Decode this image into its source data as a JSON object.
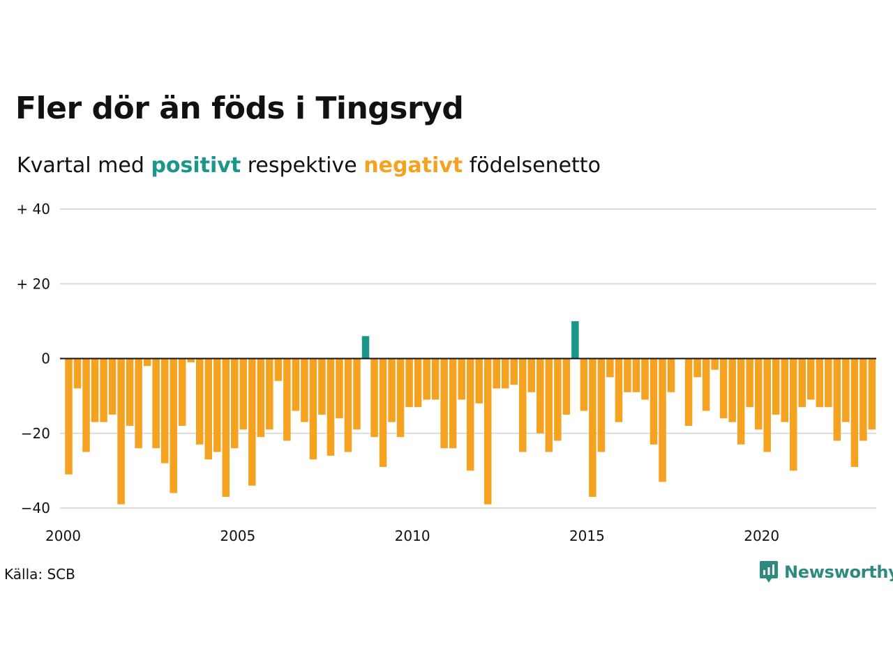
{
  "title": "Fler dör än föds i Tingsryd",
  "subtitle": {
    "prefix": "Kvartal med",
    "positive": "positivt",
    "middle": "respektive",
    "negative": "negativt",
    "suffix": "födelsenetto"
  },
  "source": "Källa: SCB",
  "logo": {
    "name": "Newsworthy",
    "icon": "newsworthy-chart-bubble-icon"
  },
  "colors": {
    "positive": "#1b968a",
    "negative": "#f4a21f",
    "grid": "#dcdcdc",
    "text": "#111111",
    "logo": "#2e8a7f"
  },
  "chart_data": {
    "type": "bar",
    "x_unit": "quarter",
    "x_start": "2000 Q1",
    "xticks": [
      "2000",
      "2005",
      "2010",
      "2015",
      "2020"
    ],
    "yticks": [
      "+ 40",
      "+ 20",
      "0",
      "−20",
      "−40"
    ],
    "ylim": [
      -40,
      40
    ],
    "grid": true,
    "values": [
      -31,
      -8,
      -25,
      -17,
      -17,
      -15,
      -39,
      -18,
      -24,
      -2,
      -24,
      -28,
      -36,
      -18,
      -1,
      -23,
      -27,
      -25,
      -37,
      -24,
      -19,
      -34,
      -21,
      -19,
      -6,
      -22,
      -14,
      -17,
      -27,
      -15,
      -26,
      -16,
      -25,
      -19,
      6,
      -21,
      -29,
      -17,
      -21,
      -13,
      -13,
      -11,
      -11,
      -24,
      -24,
      -11,
      -30,
      -12,
      -39,
      -8,
      -8,
      -7,
      -25,
      -9,
      -20,
      -25,
      -22,
      -15,
      10,
      -14,
      -37,
      -25,
      -5,
      -17,
      -9,
      -9,
      -11,
      -23,
      -33,
      -9,
      0,
      -18,
      -5,
      -14,
      -3,
      -16,
      -17,
      -23,
      -13,
      -19,
      -25,
      -15,
      -17,
      -30,
      -13,
      -11,
      -13,
      -13,
      -22,
      -17,
      -29,
      -22,
      -19
    ]
  }
}
